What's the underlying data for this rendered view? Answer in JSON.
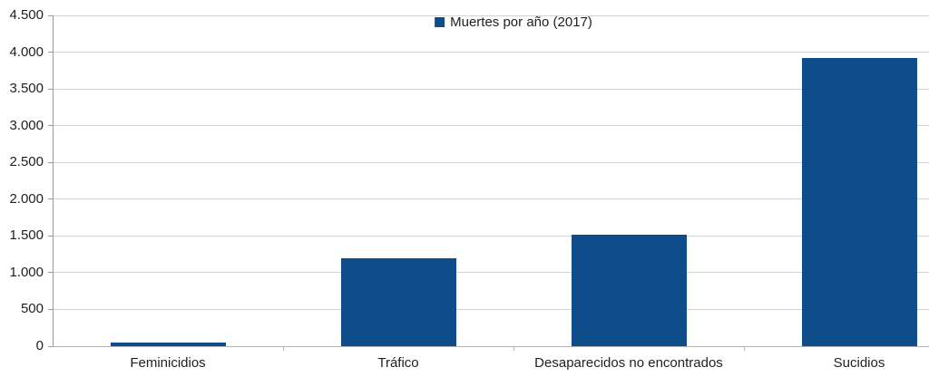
{
  "chart_data": {
    "type": "bar",
    "title": "",
    "categories": [
      "Feminicidios",
      "Tráfico",
      "Desaparecidos no encontrados",
      "Sucidios"
    ],
    "series": [
      {
        "name": "Muertes por año (2017)",
        "values": [
          50,
          1200,
          1520,
          3920
        ]
      }
    ],
    "xlabel": "",
    "ylabel": "",
    "ylim": [
      0,
      4500
    ],
    "ytick_step": 500,
    "ytick_labels": [
      "0",
      "500",
      "1.000",
      "1.500",
      "2.000",
      "2.500",
      "3.000",
      "3.500",
      "4.000",
      "4.500"
    ],
    "grid": true,
    "legend_position": "top-center",
    "colors": {
      "bar": "#0F4C8C",
      "grid": "#d4d4d4",
      "axis": "#a6a6a6",
      "text": "#1f1f1f",
      "background": "#ffffff"
    }
  }
}
